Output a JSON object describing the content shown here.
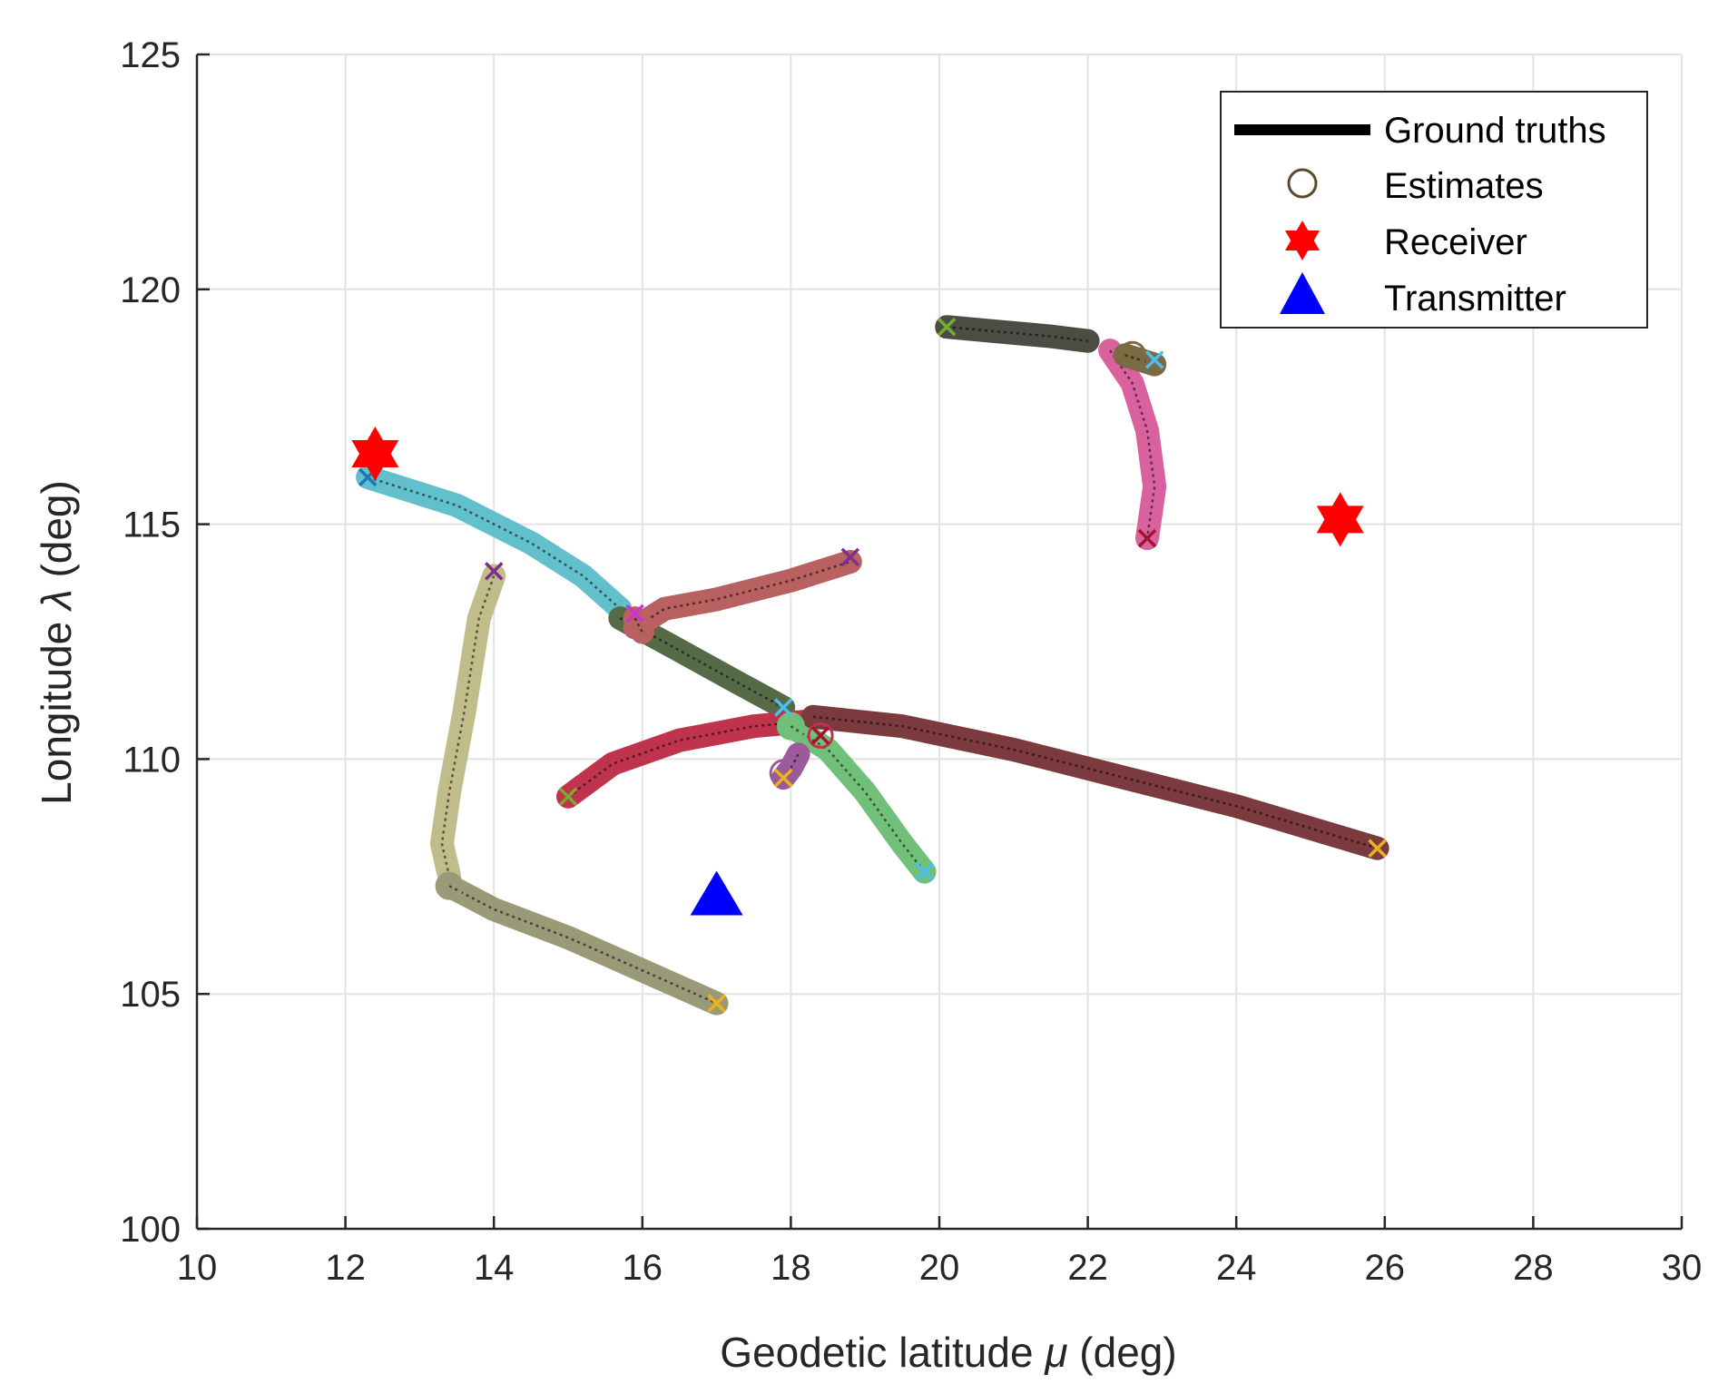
{
  "chart_data": {
    "type": "scatter",
    "title": "",
    "xlabel_text": "Geodetic latitude ",
    "xlabel_symbol": "μ",
    "xlabel_unit": " (deg)",
    "ylabel_text": "Longitude ",
    "ylabel_symbol": "λ",
    "ylabel_unit": " (deg)",
    "xlim": [
      10,
      30
    ],
    "ylim": [
      100,
      125
    ],
    "xticks": [
      10,
      12,
      14,
      16,
      18,
      20,
      22,
      24,
      26,
      28,
      30
    ],
    "yticks": [
      100,
      105,
      110,
      115,
      120,
      125
    ],
    "grid": true,
    "legend_position": "top-right",
    "legend": [
      {
        "label": "Ground truths",
        "marker": "line",
        "color": "#000000"
      },
      {
        "label": "Estimates",
        "marker": "circle",
        "color": "#5a4a2a"
      },
      {
        "label": "Receiver",
        "marker": "hexagram",
        "color": "#ff0000"
      },
      {
        "label": "Transmitter",
        "marker": "triangle",
        "color": "#0000ff"
      }
    ],
    "receivers": [
      {
        "x": 12.4,
        "y": 116.5,
        "color": "#ff0000"
      },
      {
        "x": 25.4,
        "y": 115.1,
        "color": "#ff0000"
      }
    ],
    "transmitters": [
      {
        "x": 17.0,
        "y": 107.1,
        "color": "#0000ff"
      }
    ],
    "tracks": [
      {
        "name": "track-1",
        "color": "#62c0cd",
        "points": [
          [
            12.3,
            116.0
          ],
          [
            13.5,
            115.4
          ],
          [
            14.5,
            114.6
          ],
          [
            15.2,
            113.9
          ],
          [
            15.7,
            113.2
          ]
        ],
        "end_x": [
          12.3,
          116.0
        ],
        "end_color": "#1f77b4"
      },
      {
        "name": "track-2",
        "color": "#556b47",
        "points": [
          [
            15.7,
            113.0
          ],
          [
            16.4,
            112.4
          ],
          [
            17.2,
            111.7
          ],
          [
            17.9,
            111.1
          ]
        ],
        "end_x": [
          17.9,
          111.1
        ],
        "end_color": "#4dbeee"
      },
      {
        "name": "track-3",
        "color": "#c0bd8a",
        "points": [
          [
            14.0,
            113.9
          ],
          [
            13.8,
            113.0
          ],
          [
            13.6,
            111.0
          ],
          [
            13.4,
            109.3
          ],
          [
            13.3,
            108.2
          ],
          [
            13.4,
            107.5
          ]
        ],
        "end_x": [
          14.0,
          114.0
        ],
        "end_color": "#7e2f8e"
      },
      {
        "name": "track-4",
        "color": "#9a9a78",
        "points": [
          [
            13.4,
            107.3
          ],
          [
            14.0,
            106.8
          ],
          [
            15.0,
            106.2
          ],
          [
            16.0,
            105.5
          ],
          [
            17.0,
            104.8
          ]
        ],
        "end_x": [
          17.0,
          104.8
        ],
        "end_color": "#edb120"
      },
      {
        "name": "track-5",
        "color": "#b96060",
        "points": [
          [
            15.9,
            112.8
          ],
          [
            16.3,
            113.2
          ],
          [
            17.0,
            113.4
          ],
          [
            18.0,
            113.8
          ],
          [
            18.8,
            114.2
          ]
        ],
        "end_x": [
          18.8,
          114.3
        ],
        "end_color": "#7e2f8e"
      },
      {
        "name": "track-6",
        "color": "#c0334d",
        "points": [
          [
            15.0,
            109.2
          ],
          [
            15.6,
            109.9
          ],
          [
            16.5,
            110.4
          ],
          [
            17.5,
            110.7
          ],
          [
            18.2,
            110.8
          ]
        ],
        "end_x": [
          15.0,
          109.2
        ],
        "end_color": "#77ac30"
      },
      {
        "name": "track-7",
        "color": "#70c07a",
        "points": [
          [
            18.0,
            110.7
          ],
          [
            18.5,
            110.2
          ],
          [
            19.0,
            109.3
          ],
          [
            19.5,
            108.2
          ],
          [
            19.8,
            107.6
          ]
        ],
        "end_x": [
          19.8,
          107.6
        ],
        "end_color": "#4dbeee"
      },
      {
        "name": "track-8",
        "color": "#7a3a3e",
        "points": [
          [
            18.3,
            110.9
          ],
          [
            19.5,
            110.7
          ],
          [
            21.0,
            110.2
          ],
          [
            22.5,
            109.6
          ],
          [
            24.0,
            109.0
          ],
          [
            25.9,
            108.1
          ]
        ],
        "end_x": [
          25.9,
          108.1
        ],
        "end_color": "#edb120"
      },
      {
        "name": "track-9",
        "color": "#4a4d44",
        "points": [
          [
            20.1,
            119.2
          ],
          [
            20.8,
            119.1
          ],
          [
            21.5,
            119.0
          ],
          [
            22.0,
            118.9
          ]
        ],
        "end_x": [
          20.1,
          119.2
        ],
        "end_color": "#77ac30"
      },
      {
        "name": "track-10",
        "color": "#d9619e",
        "points": [
          [
            22.3,
            118.7
          ],
          [
            22.6,
            118.0
          ],
          [
            22.8,
            117.0
          ],
          [
            22.9,
            115.8
          ],
          [
            22.8,
            114.7
          ]
        ],
        "end_x": [
          22.8,
          114.7
        ],
        "end_color": "#a2142f"
      },
      {
        "name": "track-11",
        "color": "#7a6b43",
        "points": [
          [
            22.5,
            118.6
          ],
          [
            22.7,
            118.5
          ],
          [
            22.9,
            118.4
          ]
        ],
        "end_x": [
          22.9,
          118.5
        ],
        "end_color": "#4dbeee"
      },
      {
        "name": "track-12",
        "color": "#9b5a9a",
        "points": [
          [
            17.9,
            109.6
          ],
          [
            18.0,
            109.8
          ],
          [
            18.1,
            110.1
          ]
        ],
        "end_x": [
          17.9,
          109.6
        ],
        "end_color": "#edb120"
      },
      {
        "name": "track-13",
        "color": "#c0334d",
        "points": [
          [
            18.4,
            110.5
          ]
        ],
        "end_x": [
          18.4,
          110.5
        ],
        "end_color": "#a2142f"
      },
      {
        "name": "track-14",
        "color": "#b96060",
        "points": [
          [
            15.9,
            113.0
          ],
          [
            16.0,
            112.7
          ]
        ],
        "end_x": [
          15.9,
          113.1
        ],
        "end_color": "#cc33cc"
      }
    ],
    "estimate_circles": [
      {
        "x": 13.4,
        "y": 107.3,
        "color": "#9a9a78"
      },
      {
        "x": 18.0,
        "y": 110.7,
        "color": "#70c07a"
      },
      {
        "x": 22.6,
        "y": 118.6,
        "color": "#7a6b43"
      },
      {
        "x": 17.9,
        "y": 109.7,
        "color": "#9b5a9a"
      }
    ]
  }
}
